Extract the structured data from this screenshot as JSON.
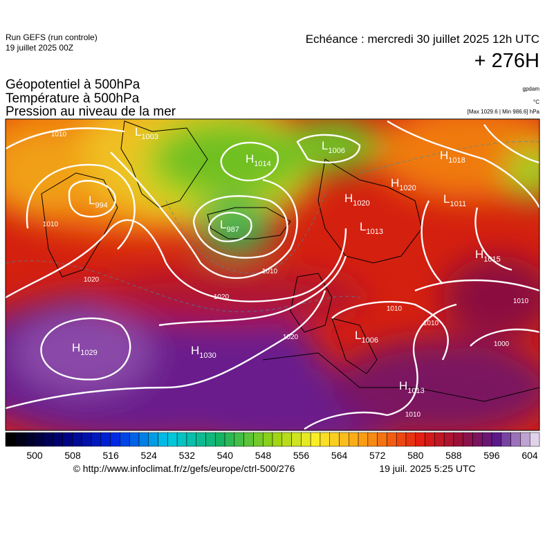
{
  "header": {
    "run": "Run GEFS (run controle)",
    "run_date": "19 juillet 2025 00Z",
    "valid": "Echéance : mercredi 30 juillet 2025 12h UTC",
    "lead": "+ 276H",
    "titles": [
      "Géopotentiel à 500hPa",
      "Température à 500hPa",
      "Pression au niveau de la mer"
    ],
    "units": [
      "gpdam",
      "°C",
      "[Max 1029.6 | Min 986.6] hPa"
    ]
  },
  "map": {
    "centers": [
      {
        "kind": "H",
        "value": 1029
      },
      {
        "kind": "H",
        "value": 1030
      },
      {
        "kind": "H",
        "value": 1014
      },
      {
        "kind": "L",
        "value": 987
      },
      {
        "kind": "L",
        "value": 994
      },
      {
        "kind": "L",
        "value": 1003
      },
      {
        "kind": "L",
        "value": 1006
      },
      {
        "kind": "H",
        "value": 1018
      },
      {
        "kind": "H",
        "value": 1020
      },
      {
        "kind": "H",
        "value": 1020
      },
      {
        "kind": "L",
        "value": 1013
      },
      {
        "kind": "L",
        "value": 1011
      },
      {
        "kind": "H",
        "value": 1015
      },
      {
        "kind": "L",
        "value": 1006
      },
      {
        "kind": "H",
        "value": 1013
      }
    ],
    "isobar_labels": [
      1010,
      1010,
      1020,
      1010,
      1020,
      1020,
      1010,
      1010,
      1000,
      1010,
      1010
    ]
  },
  "colorbar": {
    "ticks": [
      500,
      508,
      516,
      524,
      532,
      540,
      548,
      556,
      564,
      572,
      580,
      588,
      596,
      604
    ]
  },
  "footer": {
    "url": "© http://www.infoclimat.fr/z/gefs/europe/ctrl-500/276",
    "generated": "19 juil. 2025  5:25 UTC"
  }
}
